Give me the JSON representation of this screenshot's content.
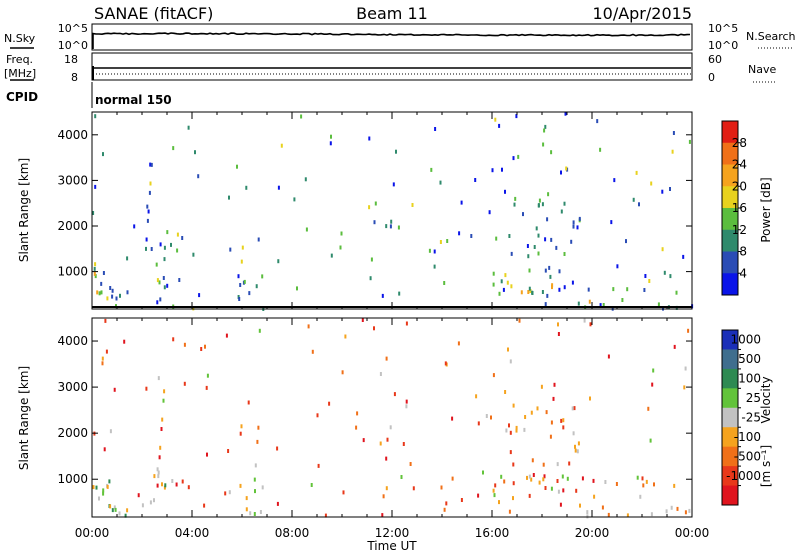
{
  "header": {
    "station": "SANAE (fitACF)",
    "beam": "Beam 11",
    "date": "10/Apr/2015"
  },
  "top_panels": {
    "nsky_label": "N.Sky",
    "nsky_ticks": [
      "10^5",
      "10^0"
    ],
    "nsearch_label": "N.Search",
    "nsearch_ticks": [
      "10^5",
      "10^0"
    ],
    "freq_label": "Freq.",
    "freq_unit": "[MHz]",
    "freq_ticks": [
      "18",
      "8"
    ],
    "nave_label": "Nave",
    "nave_ticks": [
      "60",
      "0"
    ],
    "cpid_label": "CPID",
    "cpid_value": "normal 150"
  },
  "x_axis": {
    "label": "Time UT",
    "ticks": [
      "00:00",
      "04:00",
      "08:00",
      "12:00",
      "16:00",
      "20:00",
      "00:00"
    ],
    "tick_hours": [
      0,
      4,
      8,
      12,
      16,
      20,
      24
    ]
  },
  "power_panel": {
    "ylabel": "Slant Range [km]",
    "yticks": [
      "1000",
      "2000",
      "3000",
      "4000"
    ],
    "colorbar_label": "Power [dB]",
    "colorbar_ticks": [
      "4",
      "8",
      "12",
      "16",
      "20",
      "24",
      "28"
    ],
    "colors": [
      "#0a14e8",
      "#2a4cb5",
      "#2f8a6c",
      "#5bbd3e",
      "#e8d21e",
      "#f5a31e",
      "#f07018",
      "#e11e14"
    ]
  },
  "velocity_panel": {
    "ylabel": "Slant Range [km]",
    "yticks": [
      "1000",
      "2000",
      "3000",
      "4000"
    ],
    "colorbar_label": "Velocity",
    "colorbar_unit": "[m s⁻¹]",
    "colorbar_ticks": [
      "1000",
      "500",
      "100",
      "25",
      "-25",
      "-100",
      "-500",
      "-1000"
    ],
    "colors": [
      "#1a2fb8",
      "#3f6e8e",
      "#2e8a52",
      "#62c33a",
      "#c2c2c2",
      "#f5a31e",
      "#f07018",
      "#e8381a",
      "#e0141e"
    ]
  },
  "chart_data": [
    {
      "type": "heatmap",
      "title": "Power [dB]",
      "xlabel": "Time UT",
      "ylabel": "Slant Range [km]",
      "xlim": [
        "00:00",
        "24:00"
      ],
      "ylim": [
        180,
        4500
      ],
      "color_scale": [
        0,
        32
      ],
      "clusters": [
        {
          "t": [
            0.0,
            1.4
          ],
          "range": [
            180,
            1000
          ],
          "density": 0.55,
          "values": [
            3,
            22
          ]
        },
        {
          "t": [
            2.3,
            2.9
          ],
          "range": [
            200,
            1600
          ],
          "density": 0.45,
          "values": [
            3,
            20
          ]
        },
        {
          "t": [
            5.8,
            6.8
          ],
          "range": [
            200,
            950
          ],
          "density": 0.35,
          "values": [
            3,
            18
          ]
        },
        {
          "t": [
            11.6,
            12.2
          ],
          "range": [
            1900,
            2150
          ],
          "density": 0.4,
          "values": [
            3,
            14
          ]
        },
        {
          "t": [
            13.1,
            13.3
          ],
          "range": [
            2250,
            2450
          ],
          "density": 0.5,
          "values": [
            3,
            12
          ]
        },
        {
          "t": [
            16.0,
            19.2
          ],
          "range": [
            500,
            1100
          ],
          "density": 0.5,
          "values": [
            3,
            24
          ]
        },
        {
          "t": [
            16.5,
            19.5
          ],
          "range": [
            1300,
            2600
          ],
          "density": 0.25,
          "values": [
            3,
            14
          ]
        },
        {
          "t": [
            19.3,
            23.8
          ],
          "range": [
            180,
            400
          ],
          "density": 0.45,
          "values": [
            3,
            24
          ]
        },
        {
          "t": [
            19.5,
            23.3
          ],
          "range": [
            500,
            1000
          ],
          "density": 0.15,
          "values": [
            3,
            20
          ]
        }
      ]
    },
    {
      "type": "heatmap",
      "title": "Velocity",
      "xlabel": "Time UT",
      "ylabel": "Slant Range [km]",
      "xlim": [
        "00:00",
        "24:00"
      ],
      "ylim": [
        180,
        4500
      ],
      "color_scale": [
        -1000,
        1000
      ],
      "clusters": [
        {
          "t": [
            0.0,
            1.4
          ],
          "range": [
            180,
            1000
          ],
          "density": 0.55,
          "values": [
            -300,
            600
          ]
        },
        {
          "t": [
            2.3,
            2.9
          ],
          "range": [
            200,
            1600
          ],
          "density": 0.45,
          "values": [
            -300,
            400
          ]
        },
        {
          "t": [
            5.8,
            6.8
          ],
          "range": [
            200,
            950
          ],
          "density": 0.35,
          "values": [
            -400,
            200
          ]
        },
        {
          "t": [
            11.6,
            12.2
          ],
          "range": [
            1900,
            2150
          ],
          "density": 0.4,
          "values": [
            -200,
            100
          ]
        },
        {
          "t": [
            13.1,
            13.3
          ],
          "range": [
            2250,
            2450
          ],
          "density": 0.5,
          "values": [
            -500,
            -50
          ]
        },
        {
          "t": [
            16.0,
            19.2
          ],
          "range": [
            500,
            1100
          ],
          "density": 0.5,
          "values": [
            -900,
            300
          ]
        },
        {
          "t": [
            16.5,
            19.5
          ],
          "range": [
            1300,
            2600
          ],
          "density": 0.25,
          "values": [
            -800,
            100
          ]
        },
        {
          "t": [
            19.3,
            23.8
          ],
          "range": [
            180,
            400
          ],
          "density": 0.45,
          "values": [
            -400,
            0
          ]
        },
        {
          "t": [
            19.5,
            23.3
          ],
          "range": [
            500,
            1000
          ],
          "density": 0.15,
          "values": [
            -500,
            100
          ]
        }
      ]
    }
  ]
}
